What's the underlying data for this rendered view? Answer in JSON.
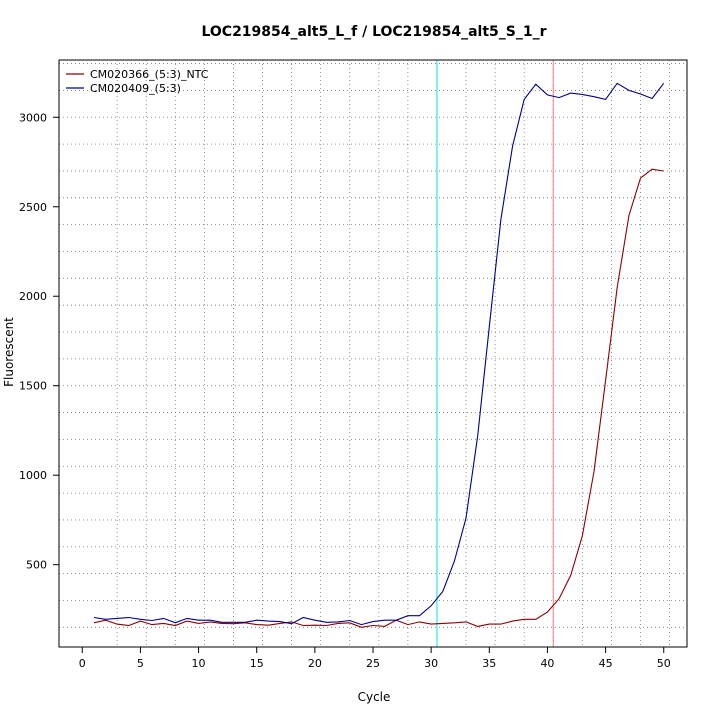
{
  "chart_data": {
    "type": "line",
    "title": "LOC219854_alt5_L_f / LOC219854_alt5_S_1_r",
    "xlabel": "Cycle",
    "ylabel": "Fluorescent",
    "xlim": [
      -2,
      52
    ],
    "ylim": [
      40,
      3320
    ],
    "x_ticks": [
      "0",
      "5",
      "10",
      "15",
      "20",
      "25",
      "30",
      "35",
      "40",
      "45",
      "50"
    ],
    "y_ticks": [
      "500",
      "1000",
      "1500",
      "2000",
      "2500",
      "3000"
    ],
    "grid": true,
    "legend_position": "top-left",
    "vertical_lines": [
      {
        "x": 30.5,
        "color": "#00e5ee"
      },
      {
        "x": 40.5,
        "color": "#ff7b7b"
      }
    ],
    "x": [
      1,
      2,
      3,
      4,
      5,
      6,
      7,
      8,
      9,
      10,
      11,
      12,
      13,
      14,
      15,
      16,
      17,
      18,
      19,
      20,
      21,
      22,
      23,
      24,
      25,
      26,
      27,
      28,
      29,
      30,
      31,
      32,
      33,
      34,
      35,
      36,
      37,
      38,
      39,
      40,
      41,
      42,
      43,
      44,
      45,
      46,
      47,
      48,
      49,
      50
    ],
    "series": [
      {
        "name": "CM020366_(5:3)_NTC",
        "color": "#8b0000",
        "values": [
          175,
          190,
          168,
          160,
          185,
          165,
          172,
          160,
          185,
          172,
          180,
          172,
          170,
          175,
          165,
          162,
          172,
          180,
          160,
          162,
          160,
          172,
          175,
          150,
          160,
          155,
          190,
          165,
          180,
          168,
          172,
          175,
          180,
          155,
          168,
          168,
          185,
          195,
          195,
          235,
          310,
          440,
          660,
          1020,
          1530,
          2050,
          2450,
          2660,
          2710,
          2700
        ]
      },
      {
        "name": "CM020409_(5:3)",
        "color": "#00008b",
        "values": [
          205,
          195,
          200,
          205,
          195,
          188,
          200,
          175,
          200,
          190,
          190,
          178,
          178,
          178,
          190,
          185,
          182,
          170,
          205,
          190,
          178,
          180,
          188,
          165,
          182,
          190,
          190,
          215,
          215,
          270,
          350,
          520,
          760,
          1220,
          1830,
          2430,
          2840,
          3100,
          3185,
          3125,
          3110,
          3135,
          3128,
          3115,
          3100,
          3190,
          3150,
          3130,
          3105,
          3190
        ]
      }
    ]
  }
}
